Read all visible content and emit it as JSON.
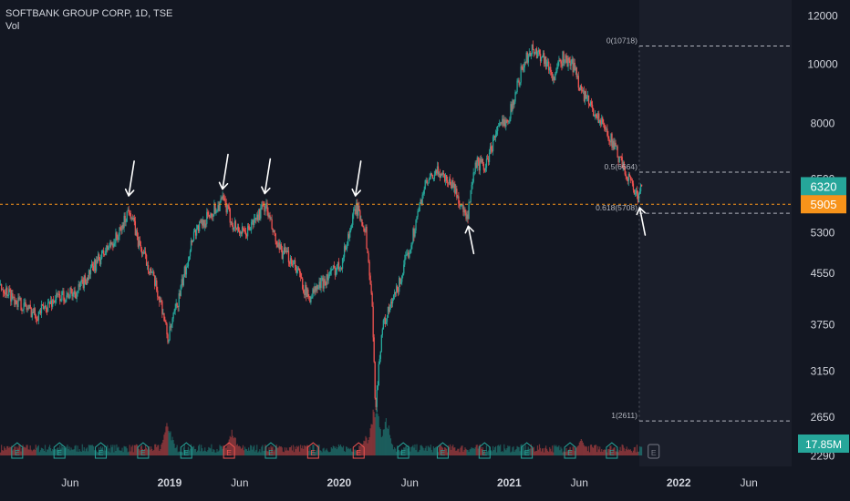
{
  "header": {
    "symbol_line": "SOFTBANK GROUP CORP, 1D, TSE",
    "indicator": "Vol"
  },
  "colors": {
    "background": "#131722",
    "up": "#26a69a",
    "down": "#ef5350",
    "axis_text": "#d1d4dc",
    "fib_line": "#b2b5be",
    "support_line": "#f7931a",
    "price_badge": "#26a69a",
    "level_badge": "#f7931a",
    "volume_badge": "#26a69a",
    "arrow": "#ffffff"
  },
  "badges": {
    "last_price": "6320",
    "level": "5905",
    "volume": "17.85M"
  },
  "chart_data": {
    "type": "candlestick",
    "title": "SOFTBANK GROUP CORP, 1D, TSE",
    "y_scale": "log",
    "y_ticks": [
      12000,
      10000,
      8000,
      6500,
      5300,
      4550,
      3750,
      3150,
      2650,
      2290
    ],
    "ylim": [
      2200,
      12400
    ],
    "x_ticks": [
      {
        "label": "Jun",
        "date": "2018-06-01",
        "bold": false
      },
      {
        "label": "2019",
        "date": "2019-01-01",
        "bold": true
      },
      {
        "label": "Jun",
        "date": "2019-06-01",
        "bold": false
      },
      {
        "label": "2020",
        "date": "2020-01-01",
        "bold": true
      },
      {
        "label": "Jun",
        "date": "2020-06-01",
        "bold": false
      },
      {
        "label": "2021",
        "date": "2021-01-01",
        "bold": true
      },
      {
        "label": "Jun",
        "date": "2021-06-01",
        "bold": false
      },
      {
        "label": "2022",
        "date": "2022-01-01",
        "bold": true
      },
      {
        "label": "Jun",
        "date": "2022-06-01",
        "bold": false
      }
    ],
    "xlim": [
      "2018-01-01",
      "2022-09-01"
    ],
    "price_path": [
      [
        "2018-01-01",
        4350
      ],
      [
        "2018-02-15",
        4050
      ],
      [
        "2018-03-20",
        3900
      ],
      [
        "2018-05-01",
        4150
      ],
      [
        "2018-06-15",
        4250
      ],
      [
        "2018-08-01",
        4800
      ],
      [
        "2018-09-15",
        5300
      ],
      [
        "2018-10-05",
        5850
      ],
      [
        "2018-10-25",
        5100
      ],
      [
        "2018-11-20",
        4600
      ],
      [
        "2018-12-15",
        4000
      ],
      [
        "2018-12-27",
        3550
      ],
      [
        "2019-01-20",
        4150
      ],
      [
        "2019-02-20",
        5300
      ],
      [
        "2019-03-25",
        5650
      ],
      [
        "2019-04-25",
        6000
      ],
      [
        "2019-05-15",
        5500
      ],
      [
        "2019-06-10",
        5250
      ],
      [
        "2019-07-05",
        5600
      ],
      [
        "2019-07-25",
        5900
      ],
      [
        "2019-08-20",
        5000
      ],
      [
        "2019-09-25",
        4750
      ],
      [
        "2019-10-25",
        4150
      ],
      [
        "2019-11-25",
        4400
      ],
      [
        "2020-01-05",
        4750
      ],
      [
        "2020-02-05",
        5850
      ],
      [
        "2020-02-25",
        5400
      ],
      [
        "2020-03-10",
        4150
      ],
      [
        "2020-03-18",
        2750
      ],
      [
        "2020-04-01",
        3700
      ],
      [
        "2020-05-05",
        4300
      ],
      [
        "2020-06-01",
        5050
      ],
      [
        "2020-07-01",
        6300
      ],
      [
        "2020-08-01",
        6700
      ],
      [
        "2020-09-01",
        6350
      ],
      [
        "2020-10-01",
        5550
      ],
      [
        "2020-10-20",
        6900
      ],
      [
        "2020-11-10",
        6800
      ],
      [
        "2020-12-01",
        7700
      ],
      [
        "2021-01-01",
        8300
      ],
      [
        "2021-01-25",
        9700
      ],
      [
        "2021-02-15",
        10600
      ],
      [
        "2021-03-15",
        10300
      ],
      [
        "2021-04-05",
        9500
      ],
      [
        "2021-04-25",
        10250
      ],
      [
        "2021-05-20",
        9900
      ],
      [
        "2021-06-05",
        9000
      ],
      [
        "2021-07-05",
        8300
      ],
      [
        "2021-08-05",
        7600
      ],
      [
        "2021-09-01",
        6800
      ],
      [
        "2021-09-25",
        6300
      ],
      [
        "2021-10-05",
        5950
      ],
      [
        "2021-10-12",
        6320
      ]
    ],
    "fib_levels": [
      {
        "label": "0(10718)",
        "value": 10718
      },
      {
        "label": "0.5(6664)",
        "value": 6664
      },
      {
        "label": "0.618(5708)",
        "value": 5708
      },
      {
        "label": "1(2611)",
        "value": 2611
      }
    ],
    "fib_x_start": "2021-10-08",
    "horizontal_line": {
      "value": 5905,
      "style": "dashed"
    },
    "annotations": [
      {
        "type": "arrow-down",
        "date": "2018-10-05",
        "value": 5850
      },
      {
        "type": "arrow-down",
        "date": "2019-04-25",
        "value": 6000
      },
      {
        "type": "arrow-down",
        "date": "2019-07-25",
        "value": 5900
      },
      {
        "type": "arrow-down",
        "date": "2020-02-05",
        "value": 5850
      },
      {
        "type": "arrow-up",
        "date": "2020-10-01",
        "value": 5550
      },
      {
        "type": "arrow-up",
        "date": "2021-10-05",
        "value": 5950
      }
    ],
    "volume": {
      "label": "Vol",
      "last": "17.85M",
      "typical": 15,
      "spikes": [
        [
          "2018-12-27",
          80
        ],
        [
          "2019-05-15",
          55
        ],
        [
          "2020-03-18",
          130
        ],
        [
          "2020-02-25",
          45
        ],
        [
          "2020-04-10",
          90
        ],
        [
          "2021-06-05",
          35
        ]
      ]
    },
    "earnings_markers": [
      {
        "date": "2018-02-07",
        "color": "up"
      },
      {
        "date": "2018-05-09",
        "color": "up"
      },
      {
        "date": "2018-08-06",
        "color": "up"
      },
      {
        "date": "2018-11-05",
        "color": "up"
      },
      {
        "date": "2019-02-06",
        "color": "up"
      },
      {
        "date": "2019-05-09",
        "color": "down"
      },
      {
        "date": "2019-08-07",
        "color": "up"
      },
      {
        "date": "2019-11-06",
        "color": "down"
      },
      {
        "date": "2020-02-12",
        "color": "down"
      },
      {
        "date": "2020-05-18",
        "color": "up"
      },
      {
        "date": "2020-08-11",
        "color": "up"
      },
      {
        "date": "2020-11-09",
        "color": "up"
      },
      {
        "date": "2021-02-08",
        "color": "up"
      },
      {
        "date": "2021-05-12",
        "color": "up"
      },
      {
        "date": "2021-08-10",
        "color": "up"
      },
      {
        "date": "2021-11-08",
        "color": "future"
      }
    ],
    "earnings_label": "E"
  }
}
